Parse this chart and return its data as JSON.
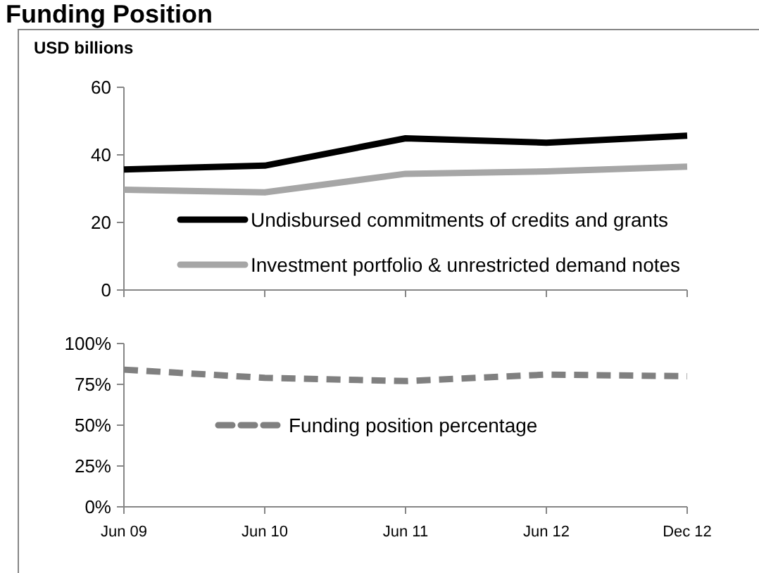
{
  "chart_data": [
    {
      "type": "line",
      "title": "Funding Position",
      "ylabel": "USD billions",
      "categories": [
        null,
        null,
        null,
        null,
        null
      ],
      "series": [
        {
          "name": "Undisbursed commitments of credits and grants",
          "color": "#000000",
          "values": [
            35.7,
            36.8,
            44.9,
            43.6,
            45.7
          ]
        },
        {
          "name": "Investment portfolio & unrestricted demand notes",
          "color": "#a6a6a6",
          "values": [
            29.7,
            28.9,
            34.4,
            35.1,
            36.5
          ]
        }
      ],
      "ylim": [
        0,
        60
      ],
      "yticks": [
        0,
        20,
        40,
        60
      ],
      "tick_labels": "y",
      "grid": false,
      "legend": "bottom right",
      "line_style": "solid",
      "marker": "none"
    },
    {
      "type": "line",
      "categories": [
        "Jun 09",
        "Jun 10",
        "Jun 11",
        "Jun 12",
        "Dec 12"
      ],
      "series": [
        {
          "name": "Funding position percentage",
          "color": "#808080",
          "values": [
            84,
            79,
            77,
            81,
            80
          ],
          "line_style": "dashed"
        }
      ],
      "ylim": [
        0,
        100
      ],
      "yticks": [
        {
          "value": 0,
          "label": "0%"
        },
        {
          "value": 25,
          "label": "25%"
        },
        {
          "value": 50,
          "label": "50%"
        },
        {
          "value": 75,
          "label": "75%"
        },
        {
          "value": 100,
          "label": "100%"
        }
      ],
      "grid": false,
      "legend": "center",
      "marker": "none"
    }
  ]
}
